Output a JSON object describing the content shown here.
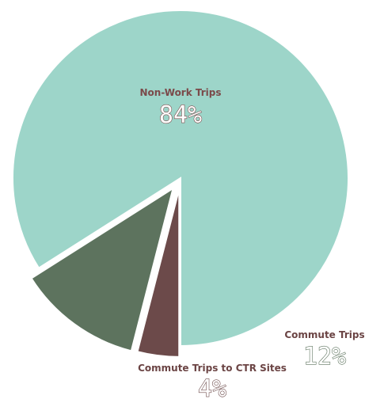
{
  "chart_data": {
    "type": "pie",
    "slices": [
      {
        "label": "Non-Work Trips",
        "value": 84,
        "value_label": "84%",
        "color": "#9dd5c9",
        "label_color": "#7b4a4a",
        "pct_color": "#7b4a4a"
      },
      {
        "label": "Commute Trips",
        "value": 12,
        "value_label": "12%",
        "color": "#5d735e",
        "label_color": "#6b4444",
        "pct_color": "#5d735e"
      },
      {
        "label": "Commute Trips to CTR Sites",
        "value": 4,
        "value_label": "4%",
        "color": "#6c4a4a",
        "label_color": "#6b4444",
        "pct_color": "#6c4a4a"
      }
    ]
  }
}
